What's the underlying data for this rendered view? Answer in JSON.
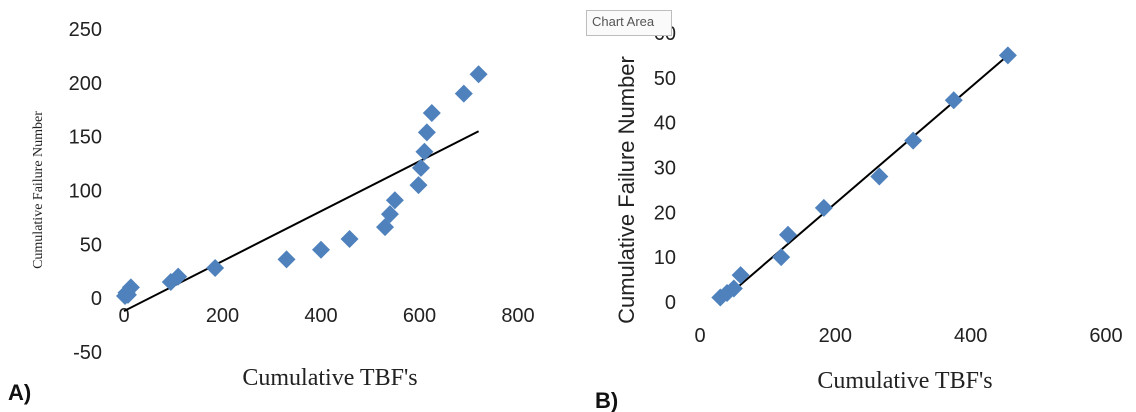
{
  "figure": {
    "panel_a_label": "A)",
    "panel_b_label": "B)",
    "tooltip": "Chart Area"
  },
  "colors": {
    "marker": "#4f81bd",
    "trendline": "#000000",
    "text": "#222222"
  },
  "chart_data": [
    {
      "id": "A",
      "type": "scatter",
      "title": "",
      "xlabel": "Cumulative TBF's",
      "ylabel": "Cumulative Failure Number",
      "xlim": [
        0,
        800
      ],
      "ylim": [
        -50,
        250
      ],
      "xticks": [
        0,
        200,
        400,
        600,
        800
      ],
      "yticks": [
        -50,
        0,
        50,
        100,
        150,
        200,
        250
      ],
      "grid": false,
      "legend": "none",
      "points": [
        {
          "x": 2,
          "y": 2
        },
        {
          "x": 5,
          "y": 5
        },
        {
          "x": 8,
          "y": 3
        },
        {
          "x": 14,
          "y": 10
        },
        {
          "x": 95,
          "y": 15
        },
        {
          "x": 110,
          "y": 20
        },
        {
          "x": 185,
          "y": 28
        },
        {
          "x": 330,
          "y": 36
        },
        {
          "x": 400,
          "y": 45
        },
        {
          "x": 458,
          "y": 55
        },
        {
          "x": 530,
          "y": 66
        },
        {
          "x": 540,
          "y": 78
        },
        {
          "x": 550,
          "y": 91
        },
        {
          "x": 598,
          "y": 105
        },
        {
          "x": 603,
          "y": 121
        },
        {
          "x": 610,
          "y": 136
        },
        {
          "x": 615,
          "y": 154
        },
        {
          "x": 625,
          "y": 172
        },
        {
          "x": 690,
          "y": 190
        },
        {
          "x": 720,
          "y": 208
        }
      ],
      "trendline": [
        {
          "x": 0,
          "y": -12
        },
        {
          "x": 720,
          "y": 155
        }
      ]
    },
    {
      "id": "B",
      "type": "scatter",
      "title": "",
      "xlabel": "Cumulative TBF's",
      "ylabel": "Cumulative Failure Number",
      "xlim": [
        0,
        600
      ],
      "ylim": [
        0,
        60
      ],
      "xticks": [
        0,
        200,
        400,
        600
      ],
      "yticks": [
        0,
        10,
        20,
        30,
        40,
        50,
        60
      ],
      "grid": false,
      "legend": "none",
      "points": [
        {
          "x": 30,
          "y": 1
        },
        {
          "x": 40,
          "y": 2
        },
        {
          "x": 50,
          "y": 3
        },
        {
          "x": 60,
          "y": 6
        },
        {
          "x": 120,
          "y": 10
        },
        {
          "x": 130,
          "y": 15
        },
        {
          "x": 183,
          "y": 21
        },
        {
          "x": 265,
          "y": 28
        },
        {
          "x": 315,
          "y": 36
        },
        {
          "x": 375,
          "y": 45
        },
        {
          "x": 455,
          "y": 55
        }
      ],
      "trendline": [
        {
          "x": 30,
          "y": 0
        },
        {
          "x": 455,
          "y": 55
        }
      ]
    }
  ]
}
